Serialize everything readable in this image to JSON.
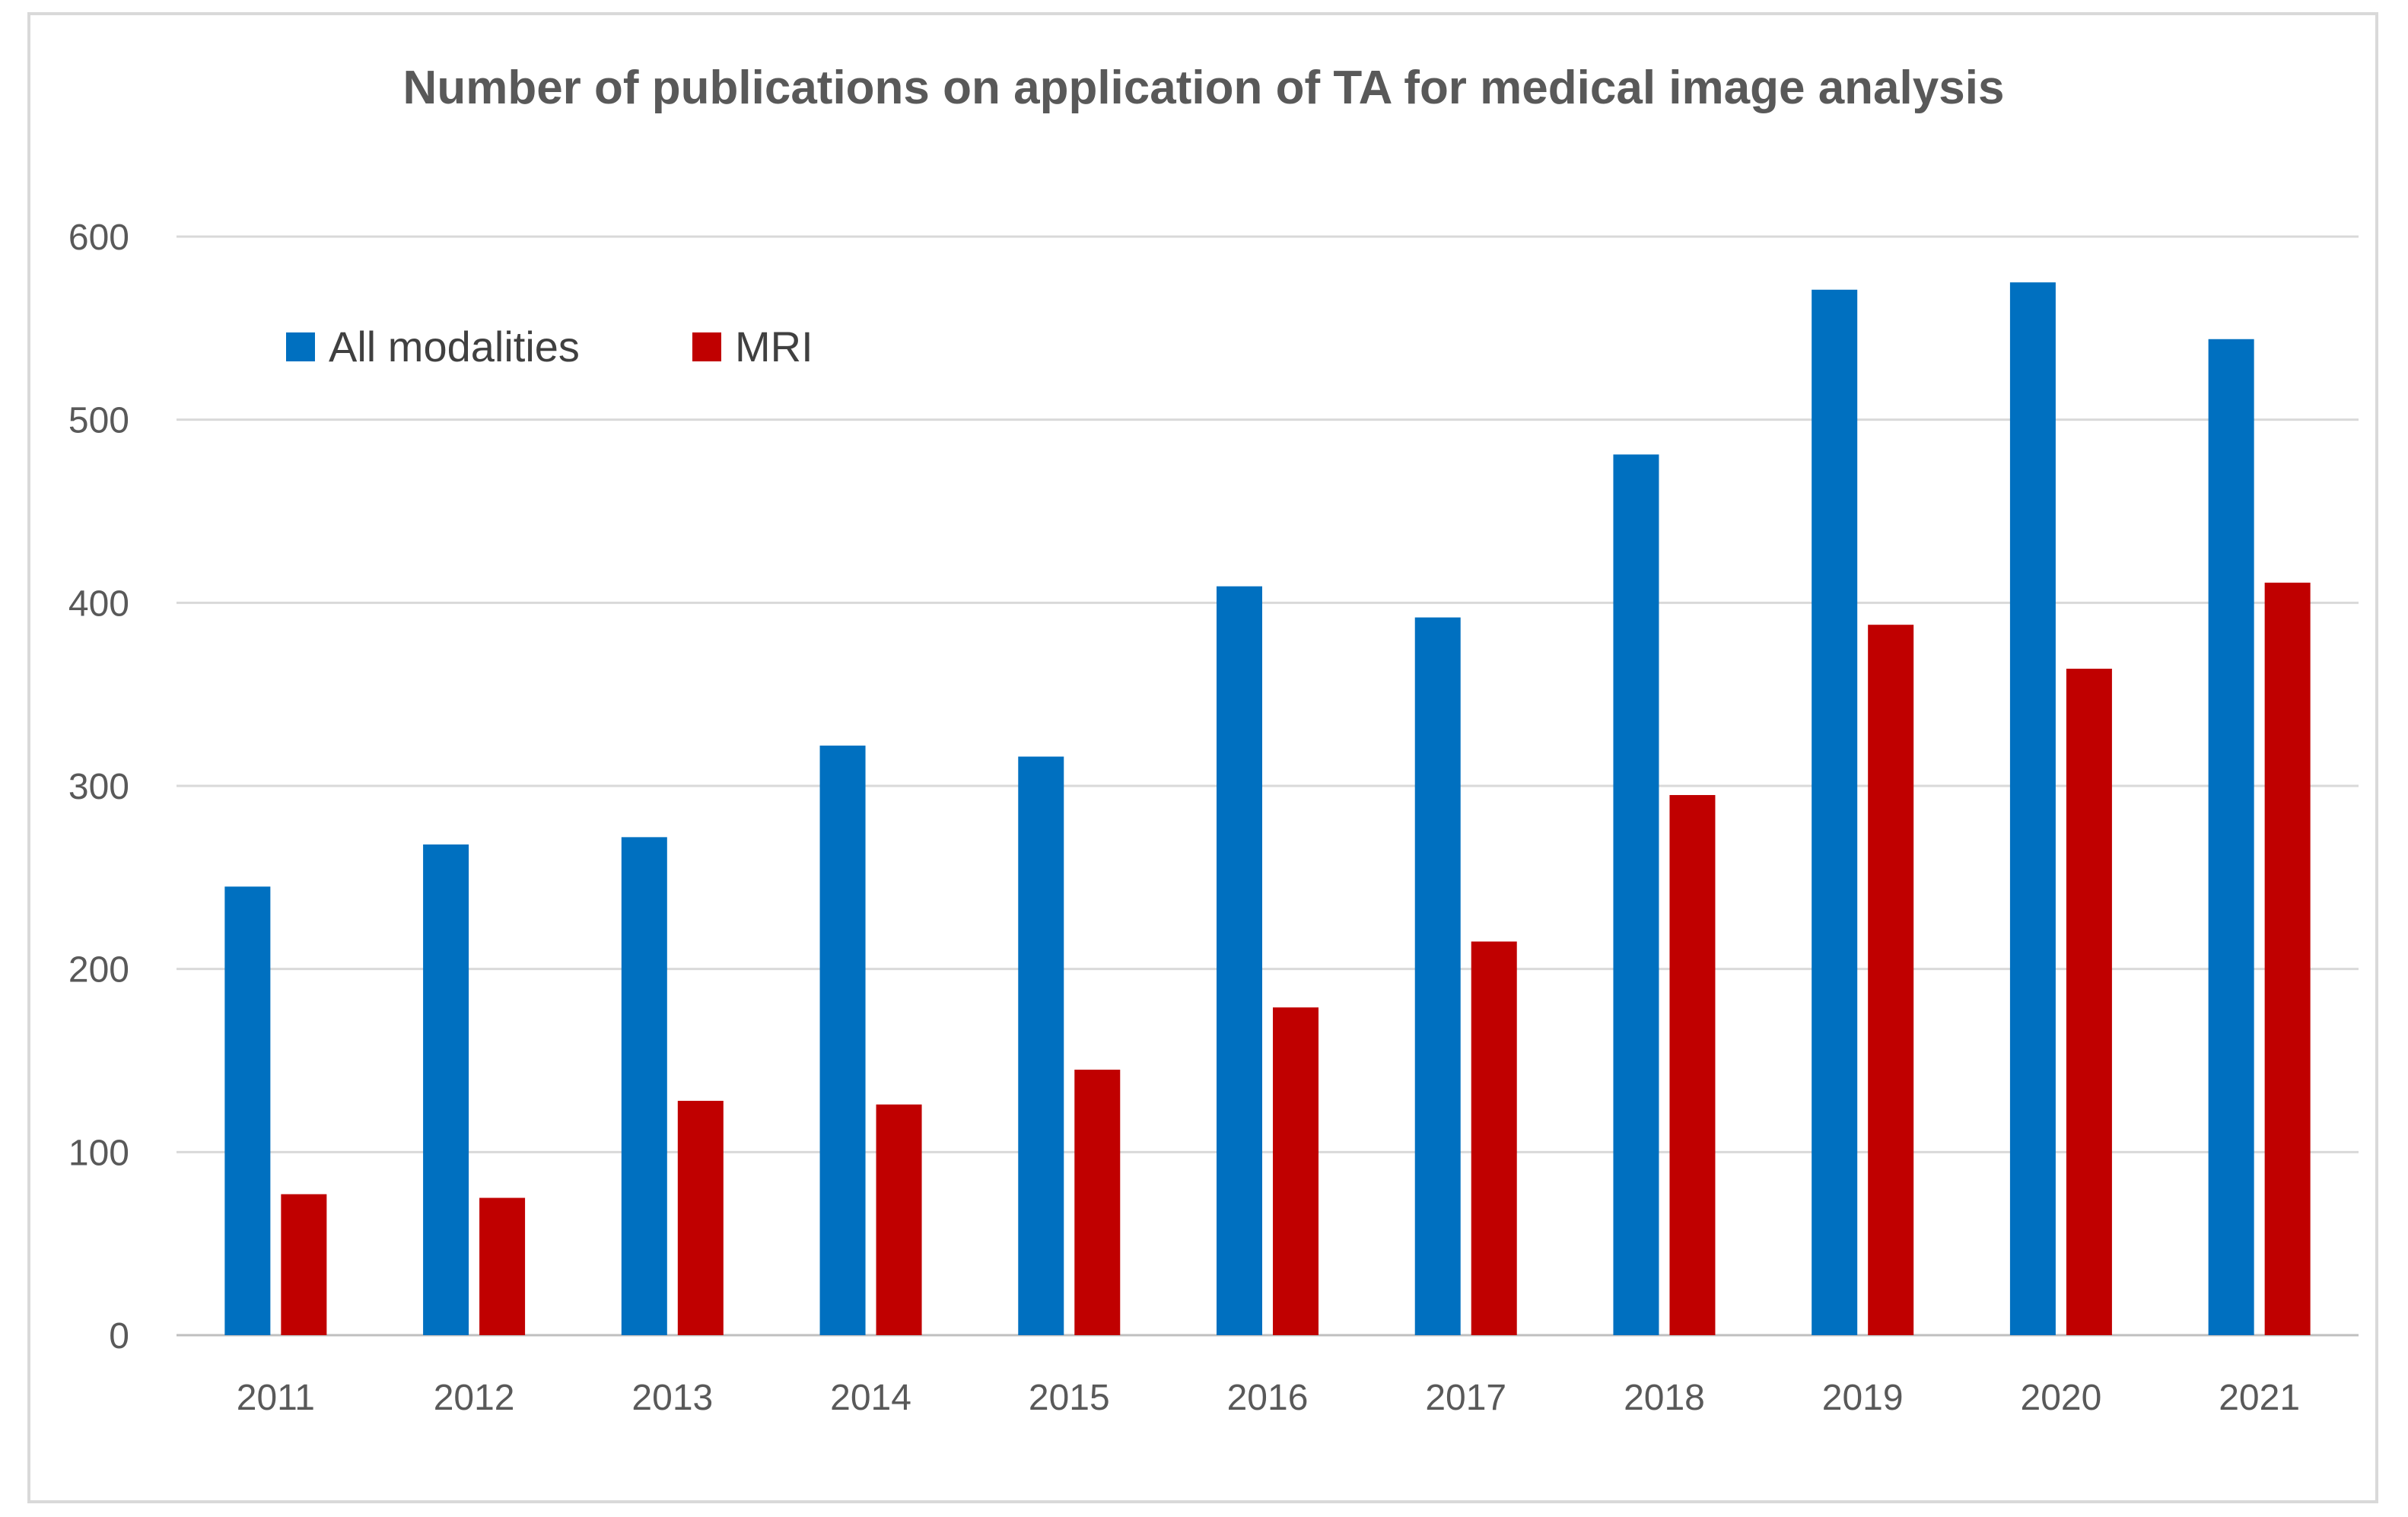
{
  "chart_data": {
    "type": "bar",
    "title": "Number of publications on application of TA for medical image analysis",
    "xlabel": "",
    "ylabel": "",
    "ylim": [
      0,
      600
    ],
    "yticks": [
      0,
      100,
      200,
      300,
      400,
      500,
      600
    ],
    "ytick_labels": [
      "0",
      "100",
      "200",
      "300",
      "400",
      "500",
      "600"
    ],
    "grid": true,
    "legend_position": "top-left",
    "categories": [
      "2011",
      "2012",
      "2013",
      "2014",
      "2015",
      "2016",
      "2017",
      "2018",
      "2019",
      "2020",
      "2021"
    ],
    "series": [
      {
        "name": "All modalities",
        "color": "#0070c0",
        "values": [
          245,
          268,
          272,
          322,
          316,
          409,
          392,
          481,
          571,
          575,
          544
        ]
      },
      {
        "name": "MRI",
        "color": "#c00000",
        "values": [
          77,
          75,
          128,
          126,
          145,
          179,
          215,
          295,
          388,
          364,
          411
        ]
      }
    ]
  }
}
